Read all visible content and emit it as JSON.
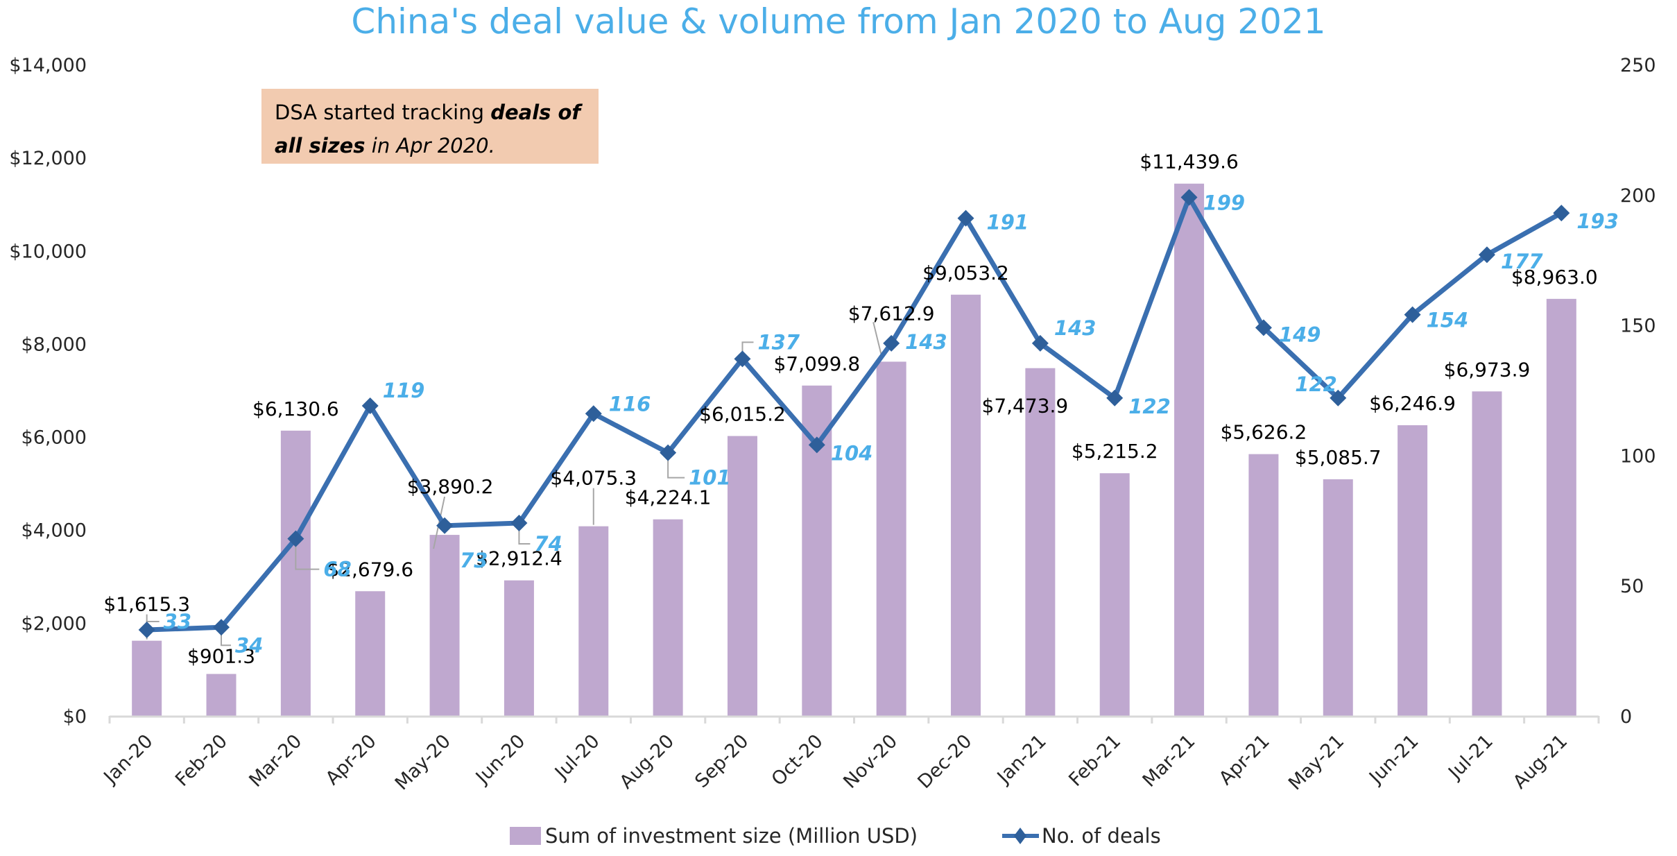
{
  "chart_data": {
    "type": "bar",
    "combo": "bar+line",
    "title": "China's deal value & volume from Jan 2020 to Aug 2021",
    "xlabel": "",
    "ylabel": "",
    "y2label": "",
    "categories": [
      "Jan-20",
      "Feb-20",
      "Mar-20",
      "Apr-20",
      "May-20",
      "Jun-20",
      "Jul-20",
      "Aug-20",
      "Sep-20",
      "Oct-20",
      "Nov-20",
      "Dec-20",
      "Jan-21",
      "Feb-21",
      "Mar-21",
      "Apr-21",
      "May-21",
      "Jun-21",
      "Jul-21",
      "Aug-21"
    ],
    "series": [
      {
        "name": "Sum of investment size (Million USD)",
        "type": "bar",
        "axis": "left",
        "color": "#bfa8cf",
        "values": [
          1615.3,
          901.3,
          6130.6,
          2679.6,
          3890.2,
          2912.4,
          4075.3,
          4224.1,
          6015.2,
          7099.8,
          7612.9,
          9053.2,
          7473.9,
          5215.2,
          11439.6,
          5626.2,
          5085.7,
          6246.9,
          6973.9,
          8963.0
        ],
        "labels": [
          "$1,615.3",
          "$901.3",
          "$6,130.6",
          "$2,679.6",
          "$3,890.2",
          "$2,912.4",
          "$4,075.3",
          "$4,224.1",
          "$6,015.2",
          "$7,099.8",
          "$7,612.9",
          "$9,053.2",
          "$7,473.9",
          "$5,215.2",
          "$11,439.6",
          "$5,626.2",
          "$5,085.7",
          "$6,246.9",
          "$6,973.9",
          "$8,963.0"
        ]
      },
      {
        "name": "No. of deals",
        "type": "line",
        "axis": "right",
        "color": "#3a6fb0",
        "marker": "diamond",
        "marker_color": "#2e5f9a",
        "label_color": "#4baee8",
        "values": [
          33,
          34,
          68,
          119,
          73,
          74,
          116,
          101,
          137,
          104,
          143,
          191,
          143,
          122,
          199,
          149,
          122,
          154,
          177,
          193
        ],
        "labels": [
          "33",
          "34",
          "68",
          "119",
          "73",
          "74",
          "116",
          "101",
          "137",
          "104",
          "143",
          "191",
          "143",
          "122",
          "199",
          "149",
          "122",
          "154",
          "177",
          "193"
        ]
      }
    ],
    "ylim": [
      0,
      14000
    ],
    "yticks": [
      0,
      2000,
      4000,
      6000,
      8000,
      10000,
      12000,
      14000
    ],
    "ytick_labels": [
      "$0",
      "$2,000",
      "$4,000",
      "$6,000",
      "$8,000",
      "$10,000",
      "$12,000",
      "$14,000"
    ],
    "y2lim": [
      0,
      250
    ],
    "y2ticks": [
      0,
      50,
      100,
      150,
      200,
      250
    ],
    "y2tick_labels": [
      "0",
      "50",
      "100",
      "150",
      "200",
      "250"
    ],
    "grid": false,
    "legend": {
      "placement": "bottom",
      "entries": [
        "Sum of investment size (Million USD)",
        "No. of deals"
      ]
    },
    "annotation": {
      "background": "#f2cbb0",
      "parts": [
        {
          "text": "DSA started tracking ",
          "style": "normal"
        },
        {
          "text": "deals of",
          "style": "bold-italic"
        },
        {
          "text": "all sizes",
          "style": "bold-italic"
        },
        {
          "text": " in Apr 2020.",
          "style": "italic"
        }
      ]
    }
  }
}
